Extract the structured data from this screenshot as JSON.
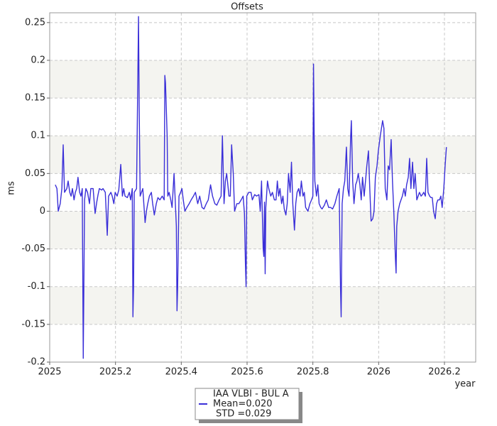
{
  "chart_data": {
    "type": "line",
    "title": "Offsets",
    "x_label": "year",
    "y_label": "ms",
    "xlim": [
      2025,
      2026.295
    ],
    "xticks": [
      2025,
      2025.2,
      2025.4,
      2025.6,
      2025.8,
      2026,
      2026.2
    ],
    "ylim": [
      -0.2,
      0.263
    ],
    "yticks": [
      -0.2,
      -0.15,
      -0.1,
      -0.05,
      0,
      0.05,
      0.1,
      0.15,
      0.2,
      0.25
    ],
    "grid": true,
    "legend_position": "bottom",
    "x": [
      2025.017,
      2025.022,
      2025.026,
      2025.032,
      2025.037,
      2025.041,
      2025.045,
      2025.052,
      2025.056,
      2025.061,
      2025.065,
      2025.069,
      2025.074,
      2025.078,
      2025.082,
      2025.086,
      2025.091,
      2025.095,
      2025.099,
      2025.102,
      2025.104,
      2025.106,
      2025.11,
      2025.115,
      2025.121,
      2025.125,
      2025.132,
      2025.138,
      2025.143,
      2025.147,
      2025.151,
      2025.158,
      2025.162,
      2025.169,
      2025.175,
      2025.179,
      2025.186,
      2025.19,
      2025.195,
      2025.199,
      2025.205,
      2025.21,
      2025.216,
      2025.221,
      2025.225,
      2025.229,
      2025.236,
      2025.242,
      2025.246,
      2025.251,
      2025.253,
      2025.255,
      2025.257,
      2025.264,
      2025.27,
      2025.272,
      2025.275,
      2025.279,
      2025.283,
      2025.29,
      2025.294,
      2025.298,
      2025.303,
      2025.309,
      2025.313,
      2025.318,
      2025.324,
      2025.329,
      2025.335,
      2025.342,
      2025.348,
      2025.35,
      2025.352,
      2025.357,
      2025.359,
      2025.363,
      2025.368,
      2025.372,
      2025.378,
      2025.385,
      2025.387,
      2025.389,
      2025.393,
      2025.398,
      2025.402,
      2025.406,
      2025.411,
      2025.417,
      2025.424,
      2025.43,
      2025.437,
      2025.443,
      2025.45,
      2025.456,
      2025.463,
      2025.469,
      2025.476,
      2025.482,
      2025.489,
      2025.495,
      2025.502,
      2025.508,
      2025.515,
      2025.521,
      2025.525,
      2025.53,
      2025.534,
      2025.538,
      2025.545,
      2025.549,
      2025.553,
      2025.558,
      2025.562,
      2025.569,
      2025.575,
      2025.582,
      2025.588,
      2025.592,
      2025.595,
      2025.597,
      2025.599,
      2025.605,
      2025.612,
      2025.616,
      2025.623,
      2025.629,
      2025.636,
      2025.64,
      2025.644,
      2025.649,
      2025.651,
      2025.653,
      2025.655,
      2025.657,
      2025.662,
      2025.666,
      2025.672,
      2025.677,
      2025.683,
      2025.688,
      2025.692,
      2025.696,
      2025.7,
      2025.705,
      2025.709,
      2025.713,
      2025.718,
      2025.722,
      2025.726,
      2025.731,
      2025.735,
      2025.739,
      2025.744,
      2025.748,
      2025.752,
      2025.757,
      2025.761,
      2025.765,
      2025.77,
      2025.774,
      2025.778,
      2025.785,
      2025.791,
      2025.796,
      2025.8,
      2025.802,
      2025.804,
      2025.806,
      2025.811,
      2025.815,
      2025.819,
      2025.824,
      2025.828,
      2025.835,
      2025.841,
      2025.848,
      2025.854,
      2025.86,
      2025.867,
      2025.873,
      2025.88,
      2025.884,
      2025.886,
      2025.889,
      2025.893,
      2025.897,
      2025.902,
      2025.906,
      2025.91,
      2025.915,
      2025.917,
      2025.921,
      2025.925,
      2025.93,
      2025.934,
      2025.938,
      2025.943,
      2025.947,
      2025.951,
      2025.956,
      2025.96,
      2025.964,
      2025.969,
      2025.973,
      2025.977,
      2025.982,
      2025.986,
      2025.99,
      2025.995,
      2025.999,
      2026.005,
      2026.012,
      2026.016,
      2026.02,
      2026.025,
      2026.029,
      2026.033,
      2026.038,
      2026.042,
      2026.046,
      2026.051,
      2026.053,
      2026.055,
      2026.059,
      2026.064,
      2026.068,
      2026.072,
      2026.077,
      2026.081,
      2026.085,
      2026.09,
      2026.094,
      2026.098,
      2026.103,
      2026.107,
      2026.111,
      2026.116,
      2026.12,
      2026.124,
      2026.129,
      2026.133,
      2026.137,
      2026.142,
      2026.146,
      2026.15,
      2026.155,
      2026.159,
      2026.163,
      2026.167,
      2026.172,
      2026.176,
      2026.18,
      2026.185,
      2026.189,
      2026.193,
      2026.198,
      2026.202,
      2026.206
    ],
    "series": [
      {
        "name": "IAA VLBI - BUL A",
        "color": "#3a2fd8",
        "values": [
          0.035,
          0.03,
          0,
          0.01,
          0.03,
          0.088,
          0.025,
          0.03,
          0.04,
          0.025,
          0.02,
          0.03,
          0.015,
          0.025,
          0.03,
          0.045,
          0.025,
          0.02,
          0.03,
          -0.195,
          -0.09,
          0.015,
          0.03,
          0.025,
          0.01,
          0.03,
          0.03,
          -0.003,
          0.012,
          0.022,
          0.03,
          0.028,
          0.03,
          0.025,
          -0.032,
          0.02,
          0.025,
          0.02,
          0.01,
          0.025,
          0.02,
          0.028,
          0.062,
          0.02,
          0.03,
          0.02,
          0.018,
          0.025,
          0.015,
          0.03,
          -0.14,
          -0.1,
          0.025,
          0.03,
          0.258,
          0.14,
          0.02,
          0.025,
          0.03,
          -0.015,
          0,
          0.01,
          0.02,
          0.025,
          0.01,
          -0.005,
          0.01,
          0.018,
          0.015,
          0.02,
          0.015,
          0.18,
          0.17,
          0.1,
          0.02,
          0.025,
          0.015,
          0.005,
          0.05,
          -0.02,
          -0.132,
          -0.1,
          0.02,
          0.025,
          0.03,
          0.015,
          0,
          0.005,
          0.01,
          0.015,
          0.02,
          0.025,
          0.01,
          0.02,
          0.005,
          0.003,
          0.01,
          0.015,
          0.035,
          0.02,
          0.01,
          0.008,
          0.015,
          0.02,
          0.1,
          0.01,
          0.04,
          0.05,
          0.02,
          0.02,
          0.088,
          0.05,
          0,
          0.01,
          0.01,
          0.015,
          0.02,
          -0.003,
          -0.07,
          -0.1,
          0.02,
          0.025,
          0.025,
          0.015,
          0.022,
          0.02,
          0.022,
          0,
          0.04,
          -0.05,
          -0.06,
          0.012,
          -0.083,
          0.005,
          0.04,
          0.03,
          0.02,
          0.025,
          0.015,
          0.015,
          0.04,
          0.02,
          0.03,
          0.01,
          0.02,
          0.003,
          -0.005,
          0.01,
          0.05,
          0.025,
          0.065,
          0.01,
          -0.025,
          0.01,
          0.025,
          0.03,
          0.02,
          0.04,
          0.02,
          0.025,
          0.005,
          0,
          0.01,
          0.015,
          0.02,
          0.195,
          0.1,
          0.04,
          0.02,
          0.035,
          0.01,
          0.005,
          0.003,
          0.008,
          0.015,
          0.005,
          0.005,
          0.003,
          0.01,
          0.02,
          0.03,
          -0.1,
          -0.14,
          0.01,
          0.03,
          0.04,
          0.085,
          0.03,
          0.02,
          0.1,
          0.12,
          0.04,
          0.01,
          0.035,
          0.04,
          0.05,
          0.035,
          0.015,
          0.045,
          0.02,
          0.04,
          0.06,
          0.08,
          0.03,
          -0.013,
          -0.01,
          0,
          0.045,
          0.06,
          0.08,
          0.1,
          0.12,
          0.11,
          0.03,
          0.015,
          0.06,
          0.055,
          0.095,
          0.04,
          0,
          -0.063,
          -0.082,
          -0.02,
          0,
          0.01,
          0.015,
          0.02,
          0.03,
          0.02,
          0.035,
          0.045,
          0.07,
          0.03,
          0.065,
          0.03,
          0.05,
          0.015,
          0.02,
          0.025,
          0.02,
          0.022,
          0.025,
          0.02,
          0.07,
          0.025,
          0.02,
          0.018,
          0.018,
          0,
          -0.01,
          0.01,
          0.015,
          0.015,
          0.02,
          0.005,
          0.03,
          0.06,
          0.085
        ]
      }
    ],
    "legend_stats": [
      "Mean=0.020",
      "STD =0.029"
    ]
  }
}
